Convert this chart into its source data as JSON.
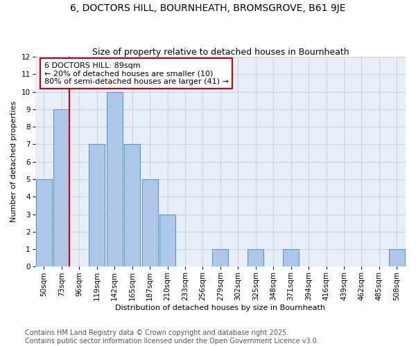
{
  "title1": "6, DOCTORS HILL, BOURNHEATH, BROMSGROVE, B61 9JE",
  "title2": "Size of property relative to detached houses in Bournheath",
  "xlabel": "Distribution of detached houses by size in Bournheath",
  "ylabel": "Number of detached properties",
  "categories": [
    "50sqm",
    "73sqm",
    "96sqm",
    "119sqm",
    "142sqm",
    "165sqm",
    "187sqm",
    "210sqm",
    "233sqm",
    "256sqm",
    "279sqm",
    "302sqm",
    "325sqm",
    "348sqm",
    "371sqm",
    "394sqm",
    "416sqm",
    "439sqm",
    "462sqm",
    "485sqm",
    "508sqm"
  ],
  "values": [
    5,
    9,
    0,
    7,
    10,
    7,
    5,
    3,
    0,
    0,
    1,
    0,
    1,
    0,
    1,
    0,
    0,
    0,
    0,
    0,
    1
  ],
  "bar_color": "#aec6e8",
  "bar_edge_color": "#5599cc",
  "vline_index": 1,
  "vline_color": "#cc0000",
  "ylim": [
    0,
    12
  ],
  "yticks": [
    0,
    1,
    2,
    3,
    4,
    5,
    6,
    7,
    8,
    9,
    10,
    11,
    12
  ],
  "annotation_text": "6 DOCTORS HILL: 89sqm\n← 20% of detached houses are smaller (10)\n80% of semi-detached houses are larger (41) →",
  "footnote": "Contains HM Land Registry data © Crown copyright and database right 2025.\nContains public sector information licensed under the Open Government Licence v3.0.",
  "bg_color": "#e8eef8",
  "grid_color": "#c0cce0",
  "title_fontsize": 10,
  "subtitle_fontsize": 9,
  "axis_label_fontsize": 8,
  "tick_fontsize": 7.5,
  "annotation_fontsize": 8,
  "footnote_fontsize": 7
}
